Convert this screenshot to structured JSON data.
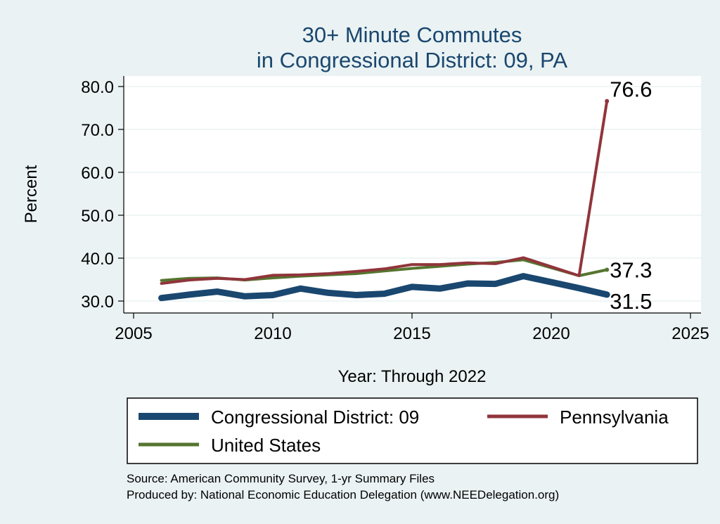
{
  "chart_data": {
    "type": "line",
    "title": [
      "30+ Minute Commutes",
      "in Congressional District:  09, PA"
    ],
    "xlabel": "Year: Through 2022",
    "ylabel": "Percent",
    "xlim": [
      2005,
      2025
    ],
    "ylim": [
      28,
      82
    ],
    "xticks": [
      2005,
      2010,
      2015,
      2020,
      2025
    ],
    "yticks": [
      30,
      40,
      50,
      60,
      70,
      80
    ],
    "ytick_format": "0.0",
    "grid": true,
    "legend_position": "bottom",
    "series": [
      {
        "name": "Congressional District:  09",
        "color": "#1a476f",
        "style": "thick",
        "x": [
          2006,
          2007,
          2008,
          2009,
          2010,
          2011,
          2012,
          2013,
          2014,
          2015,
          2016,
          2017,
          2018,
          2019,
          2021,
          2022
        ],
        "y": [
          30.7,
          31.5,
          32.2,
          31.1,
          31.4,
          32.9,
          31.9,
          31.4,
          31.7,
          33.3,
          32.9,
          34.1,
          34.0,
          35.8,
          33.0,
          31.5
        ],
        "end_label": "31.5"
      },
      {
        "name": "Pennsylvania",
        "color": "#90353b",
        "style": "thin",
        "x": [
          2006,
          2007,
          2008,
          2009,
          2010,
          2011,
          2012,
          2013,
          2014,
          2015,
          2016,
          2017,
          2018,
          2019,
          2021,
          2022
        ],
        "y": [
          34.1,
          34.9,
          35.3,
          35.0,
          36.0,
          36.1,
          36.4,
          36.9,
          37.5,
          38.5,
          38.5,
          38.9,
          38.7,
          40.1,
          35.9,
          76.6
        ],
        "end_label": "76.6"
      },
      {
        "name": "United States",
        "color": "#55752f",
        "style": "thin",
        "x": [
          2006,
          2007,
          2008,
          2009,
          2010,
          2011,
          2012,
          2013,
          2014,
          2015,
          2016,
          2017,
          2018,
          2019,
          2021,
          2022
        ],
        "y": [
          34.8,
          35.3,
          35.4,
          34.9,
          35.4,
          35.8,
          36.1,
          36.4,
          37.0,
          37.6,
          38.1,
          38.6,
          39.0,
          39.6,
          35.9,
          37.3
        ],
        "end_label": "37.3"
      }
    ]
  },
  "notes": [
    "Source: American Community Survey, 1-yr Summary Files",
    "Produced by: National Economic Education Delegation (www.NEEDelegation.org)"
  ]
}
